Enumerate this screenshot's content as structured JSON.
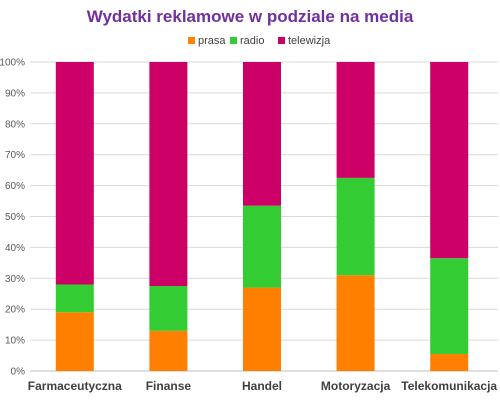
{
  "chart_data": {
    "type": "bar",
    "stacked": true,
    "percent_stacked": true,
    "title": "Wydatki reklamowe w podziale na media",
    "categories": [
      "Farmaceutyczna",
      "Finanse",
      "Handel",
      "Motoryzacja",
      "Telekomunikacja"
    ],
    "series": [
      {
        "name": "prasa",
        "values": [
          19,
          13,
          27,
          31,
          5.5
        ]
      },
      {
        "name": "radio",
        "values": [
          9,
          14.5,
          26.5,
          31.5,
          31
        ]
      },
      {
        "name": "telewizja",
        "values": [
          72,
          72.5,
          46.5,
          37.5,
          63.5
        ]
      }
    ],
    "y_ticks": [
      "0%",
      "10%",
      "20%",
      "30%",
      "40%",
      "50%",
      "60%",
      "70%",
      "80%",
      "90%",
      "100%"
    ],
    "ylim": [
      0,
      100
    ],
    "grid": true,
    "legend_position": "top-center"
  },
  "colors": {
    "title": "#7030a0",
    "prasa": "#ff8000",
    "radio": "#33cc33",
    "telewizja": "#cc0066",
    "grid": "#d9d9d9",
    "axis": "#bfbfbf"
  }
}
